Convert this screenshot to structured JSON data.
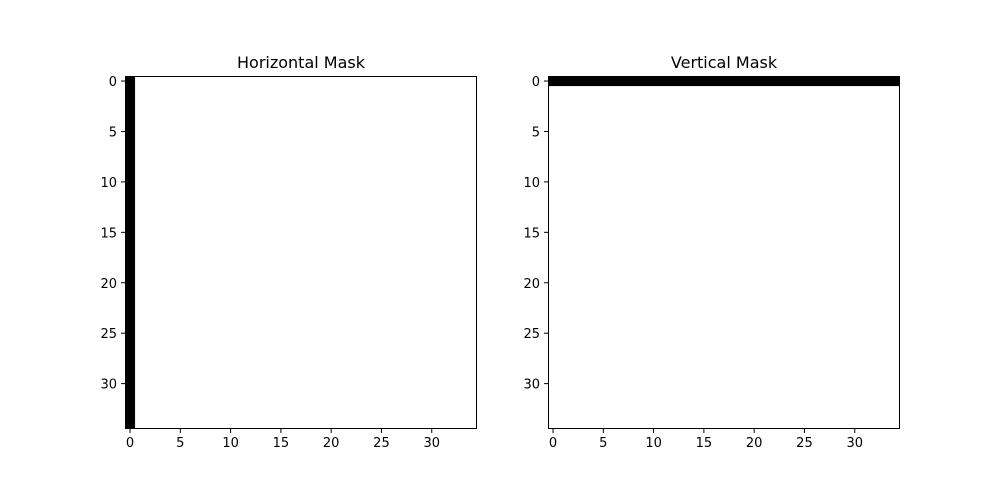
{
  "chart_data": [
    {
      "type": "heatmap",
      "title": "Horizontal Mask",
      "xlabel": "",
      "ylabel": "",
      "rows": 35,
      "cols": 35,
      "xlim": [
        -0.5,
        34.5
      ],
      "ylim": [
        34.5,
        -0.5
      ],
      "x_ticks": [
        0,
        5,
        10,
        15,
        20,
        25,
        30
      ],
      "y_ticks": [
        0,
        5,
        10,
        15,
        20,
        25,
        30
      ],
      "colormap": "gray",
      "zero_color": "#000000",
      "one_color": "#ffffff",
      "background_value": 1,
      "zero_columns": [
        0
      ],
      "zero_rows": []
    },
    {
      "type": "heatmap",
      "title": "Vertical Mask",
      "xlabel": "",
      "ylabel": "",
      "rows": 35,
      "cols": 35,
      "xlim": [
        -0.5,
        34.5
      ],
      "ylim": [
        34.5,
        -0.5
      ],
      "x_ticks": [
        0,
        5,
        10,
        15,
        20,
        25,
        30
      ],
      "y_ticks": [
        0,
        5,
        10,
        15,
        20,
        25,
        30
      ],
      "colormap": "gray",
      "zero_color": "#000000",
      "one_color": "#ffffff",
      "background_value": 1,
      "zero_columns": [],
      "zero_rows": [
        0
      ]
    }
  ]
}
